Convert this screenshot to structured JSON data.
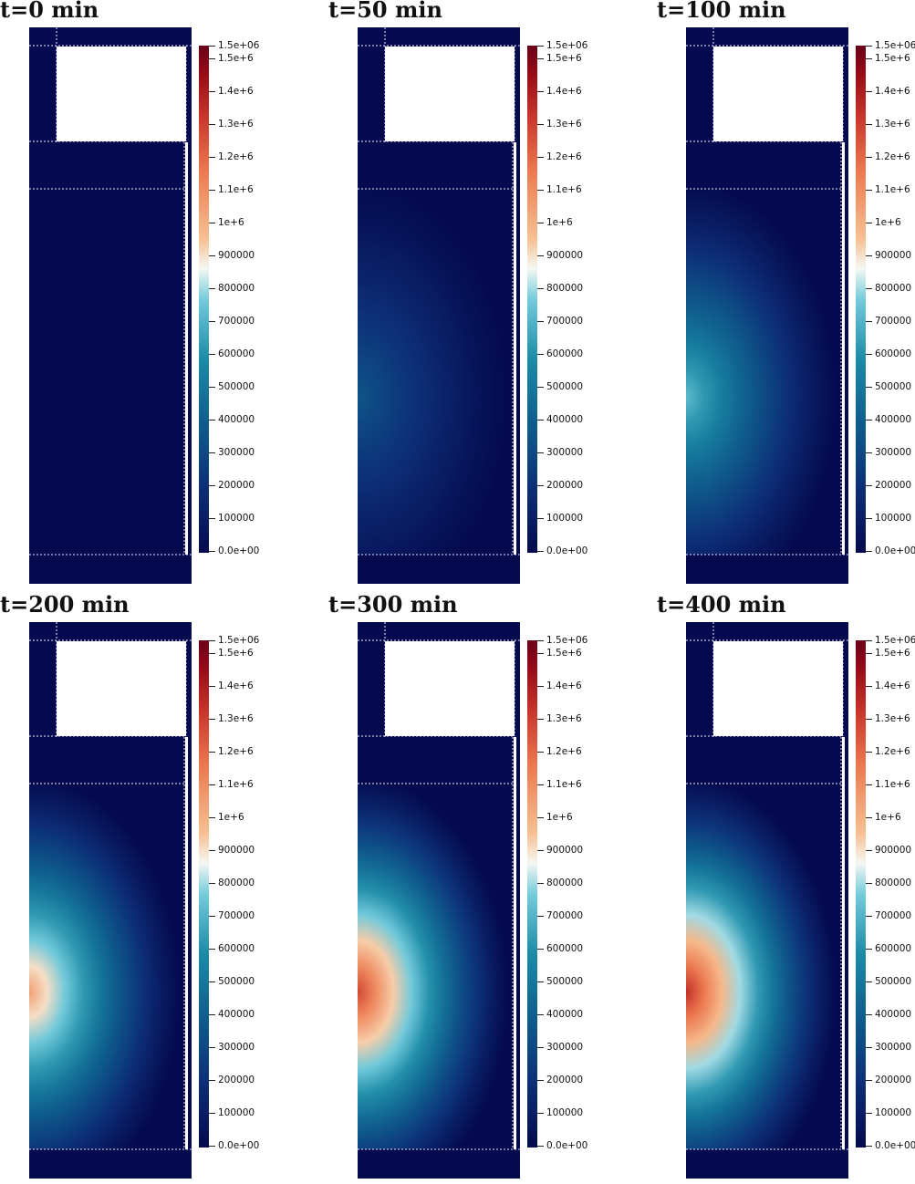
{
  "colorbar": {
    "max_label": "1.5e+06",
    "min_label": "0.0e+00",
    "ticks": [
      "1.5e+6",
      "1.4e+6",
      "1.3e+6",
      "1.2e+6",
      "1.1e+6",
      "1e+6",
      "900000",
      "800000",
      "700000",
      "600000",
      "500000",
      "400000",
      "300000",
      "200000",
      "100000"
    ]
  },
  "colors": {
    "low": "#050a4e",
    "mid": "#f4f7f2",
    "high": "#6b0019"
  },
  "panels": [
    {
      "title": "t=0 min",
      "intensity": 0.0,
      "reach": 0.0
    },
    {
      "title": "t=50 min",
      "intensity": 0.23,
      "reach": 1.0
    },
    {
      "title": "t=100 min",
      "intensity": 0.47,
      "reach": 1.0
    },
    {
      "title": "t=200 min",
      "intensity": 0.68,
      "reach": 1.0
    },
    {
      "title": "t=300 min",
      "intensity": 0.83,
      "reach": 1.0
    },
    {
      "title": "t=400 min",
      "intensity": 0.87,
      "reach": 1.0
    }
  ]
}
